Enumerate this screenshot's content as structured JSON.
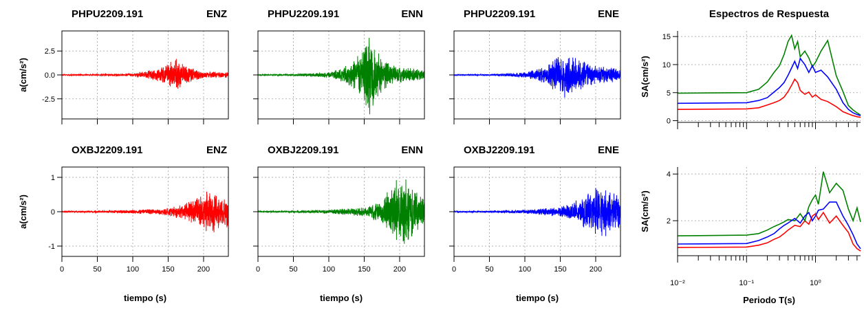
{
  "figure": {
    "colors": {
      "ENZ": "#ff0000",
      "ENN": "#008000",
      "ENE": "#0000ff"
    },
    "time_panels": [
      {
        "station": "PHPU2209.191",
        "component": "ENZ",
        "color": "#ff0000",
        "ylabel": "a(cm/s²)",
        "xlabel": "",
        "xticks": [
          "0",
          "50",
          "100",
          "150",
          "200"
        ],
        "yticks": [
          {
            "v": 2.5,
            "label": "2.5"
          },
          {
            "v": 0,
            "label": "0.0"
          },
          {
            "v": -2.5,
            "label": "-2.5"
          }
        ]
      },
      {
        "station": "PHPU2209.191",
        "component": "ENN",
        "color": "#008000",
        "ylabel": "",
        "xlabel": "",
        "xticks": [
          "0",
          "50",
          "100",
          "150",
          "200"
        ],
        "yticks": []
      },
      {
        "station": "PHPU2209.191",
        "component": "ENE",
        "color": "#0000ff",
        "ylabel": "",
        "xlabel": "",
        "xticks": [
          "0",
          "50",
          "100",
          "150",
          "200"
        ],
        "yticks": []
      },
      {
        "station": "OXBJ2209.191",
        "component": "ENZ",
        "color": "#ff0000",
        "ylabel": "a(cm/s²)",
        "xlabel": "tiempo (s)",
        "xticks": [
          "0",
          "50",
          "100",
          "150",
          "200"
        ],
        "yticks": [
          {
            "v": 1,
            "label": "1"
          },
          {
            "v": 0,
            "label": "0"
          },
          {
            "v": -1,
            "label": "-1"
          }
        ]
      },
      {
        "station": "OXBJ2209.191",
        "component": "ENN",
        "color": "#008000",
        "ylabel": "",
        "xlabel": "tiempo (s)",
        "xticks": [
          "0",
          "50",
          "100",
          "150",
          "200"
        ],
        "yticks": []
      },
      {
        "station": "OXBJ2209.191",
        "component": "ENE",
        "color": "#0000ff",
        "ylabel": "",
        "xlabel": "tiempo (s)",
        "xticks": [
          "0",
          "50",
          "100",
          "150",
          "200"
        ],
        "yticks": []
      }
    ],
    "spectra_title": "Espectros de Respuesta",
    "spectra_xlabel": "Periodo T(s)",
    "spectra_ylabel": "SA(cm/s²)",
    "spectra_xticks": [
      "10⁻²",
      "10⁻¹",
      "10⁰"
    ]
  },
  "chart_data": [
    {
      "type": "line",
      "title": "PHPU2209.191 ENZ",
      "xlabel": "",
      "ylabel": "a(cm/s²)",
      "xlim": [
        0,
        235
      ],
      "ylim": [
        -4.6,
        4.6
      ],
      "grid": true,
      "series": [
        {
          "name": "ENZ",
          "color": "#ff0000",
          "x": [
            0,
            50,
            100,
            130,
            150,
            160,
            170,
            185,
            200,
            235
          ],
          "y_envelope": [
            0.05,
            0.08,
            0.2,
            0.6,
            1.2,
            2.0,
            1.4,
            0.7,
            0.4,
            0.3
          ]
        }
      ]
    },
    {
      "type": "line",
      "title": "PHPU2209.191 ENN",
      "xlabel": "",
      "ylabel": "a(cm/s²)",
      "xlim": [
        0,
        235
      ],
      "ylim": [
        -4.6,
        4.6
      ],
      "grid": true,
      "series": [
        {
          "name": "ENN",
          "color": "#008000",
          "x": [
            0,
            50,
            100,
            120,
            140,
            150,
            155,
            170,
            185,
            200,
            235
          ],
          "y_envelope": [
            0.06,
            0.1,
            0.3,
            0.8,
            2.0,
            3.0,
            4.8,
            2.5,
            1.3,
            0.9,
            0.6
          ]
        }
      ]
    },
    {
      "type": "line",
      "title": "PHPU2209.191 ENE",
      "xlabel": "",
      "ylabel": "a(cm/s²)",
      "xlim": [
        0,
        235
      ],
      "ylim": [
        -4.6,
        4.6
      ],
      "grid": true,
      "series": [
        {
          "name": "ENE",
          "color": "#0000ff",
          "x": [
            0,
            50,
            100,
            130,
            150,
            160,
            175,
            200,
            235
          ],
          "y_envelope": [
            0.05,
            0.08,
            0.3,
            1.0,
            2.2,
            2.6,
            1.8,
            1.0,
            0.7
          ]
        }
      ]
    },
    {
      "type": "line",
      "title": "OXBJ2209.191 ENZ",
      "xlabel": "tiempo (s)",
      "ylabel": "a(cm/s²)",
      "xlim": [
        0,
        235
      ],
      "ylim": [
        -1.3,
        1.3
      ],
      "grid": true,
      "series": [
        {
          "name": "ENZ",
          "color": "#ff0000",
          "x": [
            0,
            50,
            100,
            150,
            180,
            195,
            210,
            235
          ],
          "y_envelope": [
            0.02,
            0.03,
            0.06,
            0.12,
            0.3,
            0.55,
            0.65,
            0.5
          ]
        }
      ]
    },
    {
      "type": "line",
      "title": "OXBJ2209.191 ENN",
      "xlabel": "tiempo (s)",
      "ylabel": "a(cm/s²)",
      "xlim": [
        0,
        235
      ],
      "ylim": [
        -1.3,
        1.3
      ],
      "grid": true,
      "series": [
        {
          "name": "ENN",
          "color": "#008000",
          "x": [
            0,
            50,
            100,
            150,
            175,
            190,
            200,
            220,
            235
          ],
          "y_envelope": [
            0.02,
            0.03,
            0.06,
            0.15,
            0.35,
            0.9,
            1.2,
            0.8,
            0.5
          ]
        }
      ]
    },
    {
      "type": "line",
      "title": "OXBJ2209.191 ENE",
      "xlabel": "tiempo (s)",
      "ylabel": "a(cm/s²)",
      "xlim": [
        0,
        235
      ],
      "ylim": [
        -1.3,
        1.3
      ],
      "grid": true,
      "series": [
        {
          "name": "ENE",
          "color": "#0000ff",
          "x": [
            0,
            50,
            100,
            150,
            180,
            200,
            210,
            235
          ],
          "y_envelope": [
            0.02,
            0.03,
            0.06,
            0.15,
            0.4,
            0.85,
            0.8,
            0.5
          ]
        }
      ]
    },
    {
      "type": "line",
      "title": "Espectros de Respuesta",
      "xlabel": "",
      "ylabel": "SA(cm/s²)",
      "xscale": "log",
      "xlim": [
        0.01,
        4.5
      ],
      "ylim": [
        -0.3,
        16
      ],
      "grid": true,
      "series": [
        {
          "name": "ENZ",
          "color": "#ff0000",
          "x": [
            0.01,
            0.1,
            0.15,
            0.2,
            0.25,
            0.3,
            0.35,
            0.4,
            0.45,
            0.5,
            0.55,
            0.6,
            0.7,
            0.8,
            0.9,
            1.0,
            1.2,
            1.5,
            2.0,
            2.5,
            3.0,
            3.5,
            4.0,
            4.5
          ],
          "y": [
            2.0,
            2.1,
            2.3,
            2.8,
            3.2,
            3.6,
            4.2,
            5.2,
            6.3,
            7.4,
            6.8,
            5.4,
            4.7,
            5.1,
            4.2,
            4.6,
            3.8,
            3.4,
            2.5,
            1.6,
            1.2,
            0.9,
            0.7,
            0.6
          ]
        },
        {
          "name": "ENN",
          "color": "#008000",
          "x": [
            0.01,
            0.1,
            0.15,
            0.2,
            0.25,
            0.3,
            0.35,
            0.4,
            0.45,
            0.5,
            0.55,
            0.6,
            0.7,
            0.8,
            0.9,
            1.0,
            1.2,
            1.5,
            2.0,
            2.5,
            3.0,
            3.5,
            4.0,
            4.5
          ],
          "y": [
            4.9,
            5.0,
            5.6,
            6.9,
            8.6,
            9.8,
            11.8,
            14.1,
            15.2,
            12.8,
            14.1,
            11.4,
            12.4,
            11.2,
            9.6,
            10.4,
            12.4,
            14.3,
            8.0,
            5.2,
            2.7,
            1.9,
            1.4,
            1.0
          ]
        },
        {
          "name": "ENE",
          "color": "#0000ff",
          "x": [
            0.01,
            0.1,
            0.15,
            0.2,
            0.25,
            0.3,
            0.35,
            0.4,
            0.45,
            0.5,
            0.55,
            0.6,
            0.7,
            0.8,
            0.9,
            1.0,
            1.2,
            1.5,
            2.0,
            2.5,
            3.0,
            3.5,
            4.0,
            4.5
          ],
          "y": [
            3.1,
            3.2,
            3.6,
            4.1,
            5.1,
            5.9,
            6.8,
            8.1,
            9.4,
            10.6,
            9.3,
            11.1,
            10.0,
            8.6,
            9.8,
            8.6,
            9.0,
            7.8,
            5.6,
            3.2,
            2.0,
            1.4,
            1.1,
            0.9
          ]
        }
      ]
    },
    {
      "type": "line",
      "title": "",
      "xlabel": "Periodo T(s)",
      "ylabel": "SA(cm/s²)",
      "xscale": "log",
      "xlim": [
        0.01,
        4.5
      ],
      "ylim": [
        0.5,
        4.3
      ],
      "grid": true,
      "series": [
        {
          "name": "ENZ",
          "color": "#ff0000",
          "x": [
            0.01,
            0.1,
            0.15,
            0.2,
            0.25,
            0.3,
            0.35,
            0.4,
            0.5,
            0.6,
            0.7,
            0.8,
            0.9,
            1.0,
            1.1,
            1.3,
            1.6,
            2.0,
            2.5,
            3.0,
            3.5,
            4.0,
            4.5
          ],
          "y": [
            0.85,
            0.87,
            0.95,
            1.05,
            1.2,
            1.3,
            1.45,
            1.6,
            1.8,
            1.75,
            2.0,
            1.85,
            2.2,
            2.3,
            2.05,
            2.35,
            1.9,
            2.2,
            1.8,
            1.5,
            1.0,
            0.8,
            0.7
          ]
        },
        {
          "name": "ENN",
          "color": "#008000",
          "x": [
            0.01,
            0.1,
            0.15,
            0.2,
            0.25,
            0.3,
            0.35,
            0.4,
            0.5,
            0.6,
            0.7,
            0.8,
            0.9,
            1.0,
            1.1,
            1.3,
            1.6,
            2.0,
            2.5,
            3.0,
            3.5,
            4.0,
            4.5
          ],
          "y": [
            1.35,
            1.38,
            1.45,
            1.6,
            1.75,
            1.85,
            1.95,
            2.05,
            2.0,
            2.3,
            2.0,
            2.6,
            2.9,
            3.1,
            2.7,
            4.1,
            3.2,
            3.6,
            3.3,
            2.5,
            2.0,
            2.55,
            1.95
          ]
        },
        {
          "name": "ENE",
          "color": "#0000ff",
          "x": [
            0.01,
            0.1,
            0.15,
            0.2,
            0.25,
            0.3,
            0.35,
            0.4,
            0.5,
            0.6,
            0.7,
            0.8,
            0.9,
            1.0,
            1.1,
            1.3,
            1.6,
            2.0,
            2.5,
            3.0,
            3.5,
            4.0,
            4.5
          ],
          "y": [
            1.0,
            1.02,
            1.15,
            1.3,
            1.45,
            1.65,
            1.8,
            1.9,
            2.1,
            1.9,
            2.2,
            2.35,
            2.0,
            2.2,
            2.45,
            2.5,
            2.8,
            2.8,
            2.2,
            1.8,
            1.4,
            1.0,
            0.8
          ]
        }
      ]
    }
  ]
}
